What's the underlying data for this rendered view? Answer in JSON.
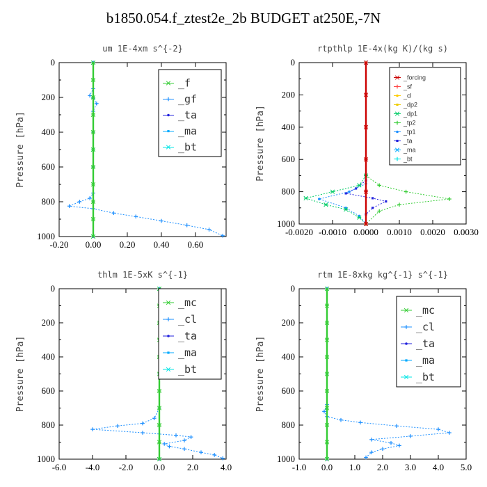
{
  "figure": {
    "title": "b1850.054.f_ztest2e_2b  BUDGET at250E,-7N"
  },
  "chart_data": [
    {
      "type": "line",
      "title": "um  1E-4xm s^{-2}",
      "ylabel": "Pressure [hPa]",
      "xlim": [
        -0.2,
        0.78
      ],
      "ylim": [
        1000,
        0
      ],
      "x_ticks": [
        "-0.20",
        "0.00",
        "0.20",
        "0.40",
        "0.60"
      ],
      "x_tick_values": [
        -0.2,
        0.0,
        0.2,
        0.4,
        0.6
      ],
      "y_ticks": [
        "0",
        "200",
        "400",
        "600",
        "800",
        "1000"
      ],
      "y_tick_values": [
        0,
        200,
        400,
        600,
        800,
        1000
      ],
      "legend_position": "top-right",
      "legend_size": "big",
      "series": [
        {
          "name": "_f",
          "color": "#33cc33",
          "values": [
            [
              0,
              0
            ],
            [
              0,
              100
            ],
            [
              0,
              200
            ],
            [
              0,
              300
            ],
            [
              0,
              400
            ],
            [
              0,
              500
            ],
            [
              0,
              600
            ],
            [
              0,
              700
            ],
            [
              0,
              800
            ],
            [
              0,
              900
            ],
            [
              0,
              1000
            ]
          ]
        },
        {
          "name": "_gf",
          "color": "#1e90ff",
          "values": [
            [
              0,
              0
            ],
            [
              0.0,
              150
            ],
            [
              -0.02,
              190
            ],
            [
              0.0,
              205
            ],
            [
              0.02,
              235
            ],
            [
              0.0,
              280
            ],
            [
              0,
              400
            ],
            [
              0,
              600
            ],
            [
              0,
              750
            ],
            [
              -0.02,
              780
            ],
            [
              -0.08,
              800
            ],
            [
              -0.14,
              825
            ],
            [
              0.0,
              840
            ],
            [
              0.12,
              865
            ],
            [
              0.25,
              885
            ],
            [
              0.4,
              910
            ],
            [
              0.55,
              935
            ],
            [
              0.68,
              960
            ],
            [
              0.76,
              995
            ]
          ]
        },
        {
          "name": "_ta",
          "color": "#2222dd",
          "values": [
            [
              0,
              0
            ],
            [
              0,
              200
            ],
            [
              0,
              400
            ],
            [
              0,
              600
            ],
            [
              0,
              800
            ],
            [
              0,
              1000
            ]
          ]
        },
        {
          "name": "_ma",
          "color": "#00aaff",
          "values": [
            [
              0,
              0
            ],
            [
              0,
              500
            ],
            [
              0,
              1000
            ]
          ]
        },
        {
          "name": "_bt",
          "color": "#00e5e5",
          "values": [
            [
              0,
              0
            ],
            [
              0,
              500
            ],
            [
              0,
              1000
            ]
          ]
        }
      ]
    },
    {
      "type": "line",
      "title": "rtpthlp  1E-4x(kg K)/(kg s)",
      "ylabel": "Pressure [hPa]",
      "xlim": [
        -0.002,
        0.003
      ],
      "ylim": [
        1000,
        0
      ],
      "x_ticks": [
        "-0.0020",
        "-0.0010",
        "0.0000",
        "0.0010",
        "0.0020",
        "0.0030"
      ],
      "x_tick_values": [
        -0.002,
        -0.001,
        0.0,
        0.001,
        0.002,
        0.003
      ],
      "y_ticks": [
        "0",
        "200",
        "400",
        "600",
        "800",
        "1000"
      ],
      "y_tick_values": [
        0,
        200,
        400,
        600,
        800,
        1000
      ],
      "legend_position": "top-right",
      "legend_size": "small",
      "series": [
        {
          "name": "_forcing",
          "color": "#cc0000",
          "values": [
            [
              0,
              0
            ],
            [
              0,
              200
            ],
            [
              0,
              400
            ],
            [
              0,
              600
            ],
            [
              0,
              800
            ],
            [
              0,
              1000
            ]
          ]
        },
        {
          "name": "_sf",
          "color": "#ff4444",
          "values": [
            [
              0,
              0
            ],
            [
              0,
              1000
            ]
          ]
        },
        {
          "name": "_cl",
          "color": "#ffcc00",
          "values": [
            [
              0,
              0
            ],
            [
              0,
              1000
            ]
          ]
        },
        {
          "name": "_dp2",
          "color": "#eecc00",
          "values": [
            [
              0,
              0
            ],
            [
              0,
              1000
            ]
          ]
        },
        {
          "name": "_dp1",
          "color": "#00cc66",
          "values": [
            [
              0,
              700
            ],
            [
              -0.0002,
              760
            ],
            [
              -0.001,
              800
            ],
            [
              -0.0018,
              840
            ],
            [
              -0.0012,
              880
            ],
            [
              -0.0006,
              910
            ],
            [
              -0.0002,
              960
            ],
            [
              0,
              1000
            ]
          ]
        },
        {
          "name": "_tp2",
          "color": "#33cc33",
          "values": [
            [
              0,
              700
            ],
            [
              0.0004,
              760
            ],
            [
              0.0012,
              800
            ],
            [
              0.0025,
              845
            ],
            [
              0.001,
              880
            ],
            [
              0.0004,
              920
            ],
            [
              0,
              1000
            ]
          ]
        },
        {
          "name": "_tp1",
          "color": "#1e90ff",
          "values": [
            [
              0,
              750
            ],
            [
              -0.0005,
              800
            ],
            [
              -0.0014,
              845
            ],
            [
              -0.0006,
              900
            ],
            [
              -0.0002,
              950
            ],
            [
              0,
              1000
            ]
          ]
        },
        {
          "name": "_ta",
          "color": "#2222dd",
          "values": [
            [
              0,
              730
            ],
            [
              -0.0003,
              780
            ],
            [
              -0.0006,
              810
            ],
            [
              0.0002,
              840
            ],
            [
              0.0006,
              860
            ],
            [
              0.0002,
              900
            ],
            [
              0,
              940
            ]
          ]
        },
        {
          "name": "_ma",
          "color": "#00aaff",
          "values": [
            [
              0,
              0
            ],
            [
              0,
              1000
            ]
          ]
        },
        {
          "name": "_bt",
          "color": "#00e5e5",
          "values": [
            [
              0,
              0
            ],
            [
              0,
              1000
            ]
          ]
        }
      ]
    },
    {
      "type": "line",
      "title": "thlm  1E-5xK s^{-1}",
      "ylabel": "Pressure [hPa]",
      "xlim": [
        -6.0,
        4.0
      ],
      "ylim": [
        1000,
        0
      ],
      "x_ticks": [
        "-6.0",
        "-4.0",
        "-2.0",
        "0.0",
        "2.0",
        "4.0"
      ],
      "x_tick_values": [
        -6,
        -4,
        -2,
        0,
        2,
        4
      ],
      "y_ticks": [
        "0",
        "200",
        "400",
        "600",
        "800",
        "1000"
      ],
      "y_tick_values": [
        0,
        200,
        400,
        600,
        800,
        1000
      ],
      "legend_position": "top-right",
      "legend_size": "big",
      "series": [
        {
          "name": "_mc",
          "color": "#33cc33",
          "values": [
            [
              0,
              0
            ],
            [
              0,
              100
            ],
            [
              0,
              200
            ],
            [
              0,
              300
            ],
            [
              0,
              400
            ],
            [
              0,
              500
            ],
            [
              0,
              600
            ],
            [
              0,
              700
            ],
            [
              0,
              800
            ],
            [
              0,
              900
            ],
            [
              0,
              1000
            ]
          ]
        },
        {
          "name": "_cl",
          "color": "#1e90ff",
          "values": [
            [
              0,
              0
            ],
            [
              0,
              500
            ],
            [
              0,
              700
            ],
            [
              -0.3,
              760
            ],
            [
              -1.0,
              790
            ],
            [
              -2.5,
              805
            ],
            [
              -4.0,
              825
            ],
            [
              -1.0,
              845
            ],
            [
              1.0,
              860
            ],
            [
              1.9,
              870
            ],
            [
              1.5,
              890
            ],
            [
              0.3,
              910
            ],
            [
              0.6,
              925
            ],
            [
              1.5,
              940
            ],
            [
              2.5,
              960
            ],
            [
              3.3,
              975
            ],
            [
              3.8,
              995
            ]
          ]
        },
        {
          "name": "_ta",
          "color": "#2222dd",
          "values": [
            [
              0,
              0
            ],
            [
              0,
              1000
            ]
          ]
        },
        {
          "name": "_ma",
          "color": "#00aaff",
          "values": [
            [
              0,
              0
            ],
            [
              0,
              1000
            ]
          ]
        },
        {
          "name": "_bt",
          "color": "#00e5e5",
          "values": [
            [
              0,
              0
            ],
            [
              0,
              1000
            ]
          ]
        }
      ]
    },
    {
      "type": "line",
      "title": "rtm  1E-8xkg kg^{-1} s^{-1}",
      "ylabel": "Pressure [hPa]",
      "xlim": [
        -1.0,
        5.0
      ],
      "ylim": [
        1000,
        0
      ],
      "x_ticks": [
        "-1.0",
        "0.0",
        "1.0",
        "2.0",
        "3.0",
        "4.0",
        "5.0"
      ],
      "x_tick_values": [
        -1,
        0,
        1,
        2,
        3,
        4,
        5
      ],
      "y_ticks": [
        "0",
        "200",
        "400",
        "600",
        "800",
        "1000"
      ],
      "y_tick_values": [
        0,
        200,
        400,
        600,
        800,
        1000
      ],
      "legend_position": "top-right",
      "legend_size": "big",
      "series": [
        {
          "name": "_mc",
          "color": "#33cc33",
          "values": [
            [
              0,
              0
            ],
            [
              0,
              100
            ],
            [
              0,
              200
            ],
            [
              0,
              300
            ],
            [
              0,
              400
            ],
            [
              0,
              500
            ],
            [
              0,
              600
            ],
            [
              0,
              700
            ],
            [
              0,
              800
            ],
            [
              0,
              900
            ],
            [
              0,
              1000
            ]
          ]
        },
        {
          "name": "_cl",
          "color": "#1e90ff",
          "values": [
            [
              0,
              0
            ],
            [
              0,
              500
            ],
            [
              0,
              680
            ],
            [
              -0.1,
              720
            ],
            [
              0.0,
              750
            ],
            [
              0.5,
              770
            ],
            [
              1.2,
              785
            ],
            [
              2.5,
              805
            ],
            [
              4.0,
              825
            ],
            [
              4.4,
              845
            ],
            [
              3.0,
              865
            ],
            [
              1.6,
              885
            ],
            [
              2.3,
              905
            ],
            [
              2.6,
              920
            ],
            [
              2.0,
              940
            ],
            [
              1.6,
              960
            ],
            [
              1.4,
              990
            ]
          ]
        },
        {
          "name": "_ta",
          "color": "#2222dd",
          "values": [
            [
              0,
              0
            ],
            [
              0,
              1000
            ]
          ]
        },
        {
          "name": "_ma",
          "color": "#00aaff",
          "values": [
            [
              0,
              0
            ],
            [
              0,
              1000
            ]
          ]
        },
        {
          "name": "_bt",
          "color": "#00e5e5",
          "values": [
            [
              0,
              0
            ],
            [
              0,
              1000
            ]
          ]
        }
      ]
    }
  ]
}
